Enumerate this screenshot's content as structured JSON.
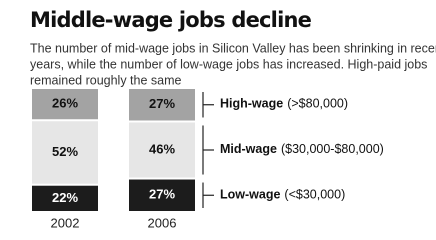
{
  "chart_data": {
    "type": "stacked_bar",
    "title": "Middle-wage jobs decline",
    "subtitle": [
      "The number of mid-wage jobs in Silicon Valley has been shrinking in recent",
      "years, while the number of low-wage jobs has increased. High-paid jobs",
      "remained roughly the same"
    ],
    "categories": [
      "2002",
      "2006"
    ],
    "series": [
      {
        "name": "Low-wage",
        "range": "(<$30,000)",
        "color": "#1c1c1c",
        "values": [
          22,
          27
        ],
        "value_labels": [
          "22%",
          "27%"
        ]
      },
      {
        "name": "Mid-wage",
        "range": "($30,000-$80,000)",
        "color": "#e6e6e6",
        "values": [
          52,
          46
        ],
        "value_labels": [
          "52%",
          "46%"
        ]
      },
      {
        "name": "High-wage",
        "range": "(>$80,000)",
        "color": "#a3a3a3",
        "values": [
          26,
          27
        ],
        "value_labels": [
          "26%",
          "27%"
        ]
      }
    ]
  }
}
